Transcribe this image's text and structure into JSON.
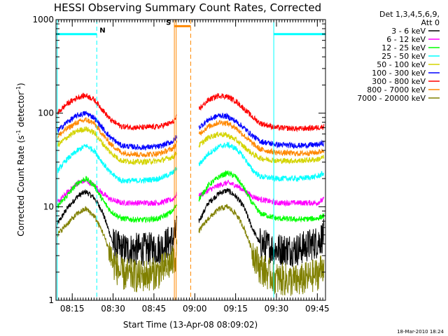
{
  "chart_data": {
    "type": "line",
    "title": "HESSI Observing Summary Count Rates, Corrected",
    "xlabel": "Start Time (13-Apr-08 08:09:02)",
    "ylabel_main": "Corrected Count Rate (s",
    "ylabel_sup1": "-1",
    "ylabel_mid": " detector",
    "ylabel_sup2": "-1",
    "ylabel_end": ")",
    "timestamp": "18-Mar-2010 18:24",
    "y_scale": "log",
    "ylim": [
      1,
      1000
    ],
    "xlim": [
      "08:09:02",
      "09:48:00"
    ],
    "x_tick_labels": [
      "08:15",
      "08:30",
      "08:45",
      "09:00",
      "09:15",
      "09:30",
      "09:45"
    ],
    "y_tick_labels": [
      {
        "value": 1,
        "label": "1"
      },
      {
        "value": 10,
        "label": "10"
      },
      {
        "value": 100,
        "label": "100"
      },
      {
        "value": 1000,
        "label": "1000"
      }
    ],
    "data_gap": [
      "08:54:00",
      "09:01:00"
    ],
    "legend": {
      "header": [
        "Det 1,3,4,5,6,9,",
        "Att 0"
      ],
      "placement": "right"
    },
    "series": [
      {
        "name": "3 - 6 keV",
        "color": "#000000",
        "values": [
          [
            "08:09:30",
            6.5
          ],
          [
            "08:13:00",
            9.5
          ],
          [
            "08:17:00",
            13
          ],
          [
            "08:20:00",
            14.5
          ],
          [
            "08:23:00",
            12.5
          ],
          [
            "08:26:00",
            9
          ],
          [
            "08:28:30",
            5.5
          ],
          [
            "08:30:00",
            4
          ],
          [
            "08:33:00",
            3.5
          ],
          [
            "08:40:00",
            3.5
          ],
          [
            "08:47:00",
            3.6
          ],
          [
            "08:52:00",
            4.5
          ],
          [
            "08:53:30",
            5.5
          ],
          [
            "09:01:30",
            7
          ],
          [
            "09:05:00",
            11
          ],
          [
            "09:09:00",
            14
          ],
          [
            "09:12:00",
            15
          ],
          [
            "09:15:00",
            13
          ],
          [
            "09:18:00",
            10
          ],
          [
            "09:21:00",
            6
          ],
          [
            "09:24:00",
            4
          ],
          [
            "09:30:00",
            3.5
          ],
          [
            "09:38:00",
            3.5
          ],
          [
            "09:45:00",
            4.2
          ],
          [
            "09:47:30",
            5
          ]
        ]
      },
      {
        "name": "6 - 12 keV",
        "color": "#ff00ff",
        "values": [
          [
            "08:09:30",
            11
          ],
          [
            "08:13:00",
            14
          ],
          [
            "08:17:00",
            18
          ],
          [
            "08:20:00",
            19
          ],
          [
            "08:23:00",
            17
          ],
          [
            "08:26:00",
            14
          ],
          [
            "08:29:00",
            12
          ],
          [
            "08:33:00",
            11
          ],
          [
            "08:40:00",
            11
          ],
          [
            "08:47:00",
            11
          ],
          [
            "08:52:00",
            12
          ],
          [
            "08:53:30",
            14
          ],
          [
            "09:01:30",
            13
          ],
          [
            "09:05:00",
            15
          ],
          [
            "09:09:00",
            17
          ],
          [
            "09:12:00",
            18
          ],
          [
            "09:15:00",
            17
          ],
          [
            "09:18:00",
            15
          ],
          [
            "09:21:00",
            13
          ],
          [
            "09:24:00",
            12
          ],
          [
            "09:30:00",
            11
          ],
          [
            "09:38:00",
            11
          ],
          [
            "09:45:00",
            11
          ],
          [
            "09:47:30",
            12
          ]
        ]
      },
      {
        "name": "12 - 25 keV",
        "color": "#00ff00",
        "values": [
          [
            "08:09:30",
            10
          ],
          [
            "08:13:00",
            13
          ],
          [
            "08:17:00",
            18
          ],
          [
            "08:20:00",
            20
          ],
          [
            "08:23:00",
            17
          ],
          [
            "08:26:00",
            12
          ],
          [
            "08:29:00",
            9
          ],
          [
            "08:33:00",
            7.5
          ],
          [
            "08:40:00",
            7.2
          ],
          [
            "08:47:00",
            7.5
          ],
          [
            "08:52:00",
            9
          ],
          [
            "08:53:30",
            11
          ],
          [
            "09:01:30",
            12
          ],
          [
            "09:05:00",
            17
          ],
          [
            "09:09:00",
            21
          ],
          [
            "09:12:00",
            23
          ],
          [
            "09:15:00",
            21
          ],
          [
            "09:18:00",
            16
          ],
          [
            "09:21:00",
            11
          ],
          [
            "09:24:00",
            8.5
          ],
          [
            "09:30:00",
            7.5
          ],
          [
            "09:38:00",
            7.3
          ],
          [
            "09:45:00",
            7.5
          ],
          [
            "09:47:30",
            8
          ]
        ]
      },
      {
        "name": "25 - 50 keV",
        "color": "#00ffff",
        "values": [
          [
            "08:09:30",
            24
          ],
          [
            "08:13:00",
            32
          ],
          [
            "08:17:00",
            40
          ],
          [
            "08:20:00",
            45
          ],
          [
            "08:23:00",
            40
          ],
          [
            "08:26:00",
            30
          ],
          [
            "08:29:00",
            23
          ],
          [
            "08:33:00",
            19
          ],
          [
            "08:40:00",
            19
          ],
          [
            "08:47:00",
            20
          ],
          [
            "08:52:00",
            23
          ],
          [
            "08:53:30",
            26
          ],
          [
            "09:01:30",
            28
          ],
          [
            "09:05:00",
            37
          ],
          [
            "09:09:00",
            44
          ],
          [
            "09:12:00",
            46
          ],
          [
            "09:15:00",
            42
          ],
          [
            "09:18:00",
            34
          ],
          [
            "09:21:00",
            25
          ],
          [
            "09:24:00",
            21
          ],
          [
            "09:30:00",
            20
          ],
          [
            "09:38:00",
            20
          ],
          [
            "09:45:00",
            21
          ],
          [
            "09:47:30",
            23
          ]
        ]
      },
      {
        "name": "50 - 100 keV",
        "color": "#d4d400",
        "values": [
          [
            "08:09:30",
            45
          ],
          [
            "08:13:00",
            55
          ],
          [
            "08:17:00",
            65
          ],
          [
            "08:20:00",
            68
          ],
          [
            "08:23:00",
            62
          ],
          [
            "08:26:00",
            48
          ],
          [
            "08:29:00",
            38
          ],
          [
            "08:33:00",
            31
          ],
          [
            "08:40:00",
            30
          ],
          [
            "08:47:00",
            31
          ],
          [
            "08:52:00",
            34
          ],
          [
            "08:53:30",
            38
          ],
          [
            "09:01:30",
            45
          ],
          [
            "09:05:00",
            55
          ],
          [
            "09:09:00",
            60
          ],
          [
            "09:12:00",
            58
          ],
          [
            "09:15:00",
            52
          ],
          [
            "09:18:00",
            44
          ],
          [
            "09:21:00",
            37
          ],
          [
            "09:24:00",
            33
          ],
          [
            "09:30:00",
            31
          ],
          [
            "09:38:00",
            31
          ],
          [
            "09:45:00",
            32
          ],
          [
            "09:47:30",
            34
          ]
        ]
      },
      {
        "name": "100 - 300 keV",
        "color": "#0000ff",
        "values": [
          [
            "08:09:30",
            64
          ],
          [
            "08:13:00",
            80
          ],
          [
            "08:17:00",
            95
          ],
          [
            "08:20:00",
            100
          ],
          [
            "08:23:00",
            90
          ],
          [
            "08:26:00",
            70
          ],
          [
            "08:29:00",
            55
          ],
          [
            "08:33:00",
            45
          ],
          [
            "08:40:00",
            43
          ],
          [
            "08:47:00",
            44
          ],
          [
            "08:52:00",
            50
          ],
          [
            "08:53:30",
            57
          ],
          [
            "09:01:30",
            70
          ],
          [
            "09:05:00",
            85
          ],
          [
            "09:09:00",
            95
          ],
          [
            "09:12:00",
            92
          ],
          [
            "09:15:00",
            82
          ],
          [
            "09:18:00",
            70
          ],
          [
            "09:21:00",
            58
          ],
          [
            "09:24:00",
            50
          ],
          [
            "09:30:00",
            46
          ],
          [
            "09:38:00",
            45
          ],
          [
            "09:45:00",
            46
          ],
          [
            "09:47:30",
            48
          ]
        ]
      },
      {
        "name": "300 - 800 keV",
        "color": "#ff0000",
        "values": [
          [
            "08:09:30",
            100
          ],
          [
            "08:13:00",
            125
          ],
          [
            "08:17:00",
            148
          ],
          [
            "08:20:00",
            155
          ],
          [
            "08:23:00",
            140
          ],
          [
            "08:26:00",
            110
          ],
          [
            "08:29:00",
            85
          ],
          [
            "08:33:00",
            72
          ],
          [
            "08:40:00",
            70
          ],
          [
            "08:47:00",
            72
          ],
          [
            "08:52:00",
            80
          ],
          [
            "08:53:30",
            92
          ],
          [
            "09:01:30",
            110
          ],
          [
            "09:05:00",
            138
          ],
          [
            "09:09:00",
            155
          ],
          [
            "09:12:00",
            150
          ],
          [
            "09:15:00",
            135
          ],
          [
            "09:18:00",
            112
          ],
          [
            "09:21:00",
            92
          ],
          [
            "09:24:00",
            78
          ],
          [
            "09:30:00",
            70
          ],
          [
            "09:38:00",
            68
          ],
          [
            "09:45:00",
            70
          ],
          [
            "09:47:30",
            72
          ]
        ]
      },
      {
        "name": "800 - 7000 keV",
        "color": "#ff8800",
        "values": [
          [
            "08:09:30",
            56
          ],
          [
            "08:13:00",
            68
          ],
          [
            "08:17:00",
            80
          ],
          [
            "08:20:00",
            85
          ],
          [
            "08:23:00",
            78
          ],
          [
            "08:26:00",
            60
          ],
          [
            "08:29:00",
            47
          ],
          [
            "08:33:00",
            38
          ],
          [
            "08:40:00",
            36
          ],
          [
            "08:47:00",
            37
          ],
          [
            "08:52:00",
            42
          ],
          [
            "08:53:30",
            48
          ],
          [
            "09:01:30",
            60
          ],
          [
            "09:05:00",
            72
          ],
          [
            "09:09:00",
            80
          ],
          [
            "09:12:00",
            78
          ],
          [
            "09:15:00",
            70
          ],
          [
            "09:18:00",
            58
          ],
          [
            "09:21:00",
            48
          ],
          [
            "09:24:00",
            41
          ],
          [
            "09:30:00",
            38
          ],
          [
            "09:38:00",
            37
          ],
          [
            "09:45:00",
            38
          ],
          [
            "09:47:30",
            40
          ]
        ]
      },
      {
        "name": "7000 - 20000 keV",
        "color": "#808000",
        "values": [
          [
            "08:09:30",
            5
          ],
          [
            "08:13:00",
            6.5
          ],
          [
            "08:17:00",
            8.5
          ],
          [
            "08:20:00",
            9.5
          ],
          [
            "08:23:00",
            8
          ],
          [
            "08:26:00",
            5.5
          ],
          [
            "08:28:30",
            3.5
          ],
          [
            "08:30:00",
            2.5
          ],
          [
            "08:33:00",
            1.9
          ],
          [
            "08:40:00",
            1.8
          ],
          [
            "08:47:00",
            2
          ],
          [
            "08:52:00",
            2.6
          ],
          [
            "08:53:30",
            3.2
          ],
          [
            "09:01:30",
            5.5
          ],
          [
            "09:05:00",
            7.5
          ],
          [
            "09:09:00",
            9.5
          ],
          [
            "09:12:00",
            10
          ],
          [
            "09:15:00",
            8.5
          ],
          [
            "09:18:00",
            6
          ],
          [
            "09:21:00",
            3.5
          ],
          [
            "09:24:00",
            2.2
          ],
          [
            "09:30:00",
            1.7
          ],
          [
            "09:38:00",
            1.6
          ],
          [
            "09:45:00",
            1.9
          ],
          [
            "09:47:30",
            2.4
          ]
        ]
      }
    ],
    "flags": [
      {
        "label": "N",
        "color": "#00ffff",
        "bars": [
          [
            "08:09:02",
            "08:24:00"
          ],
          [
            "09:29:00",
            "09:48:00"
          ]
        ],
        "markers": [
          "08:24:00",
          "09:48:00"
        ],
        "level": 700
      },
      {
        "label": "S",
        "color": "#ff8800",
        "bars": [
          [
            "08:52:30",
            "08:58:30"
          ]
        ],
        "markers": [
          "08:58:30"
        ],
        "level": 850
      }
    ],
    "boundary_lines": [
      {
        "color": "#00ffff",
        "style": "solid",
        "times": [
          "08:09:30",
          "09:29:00"
        ]
      },
      {
        "color": "#ff8800",
        "style": "solid",
        "times": [
          "08:52:30",
          "08:53:10"
        ]
      }
    ]
  }
}
